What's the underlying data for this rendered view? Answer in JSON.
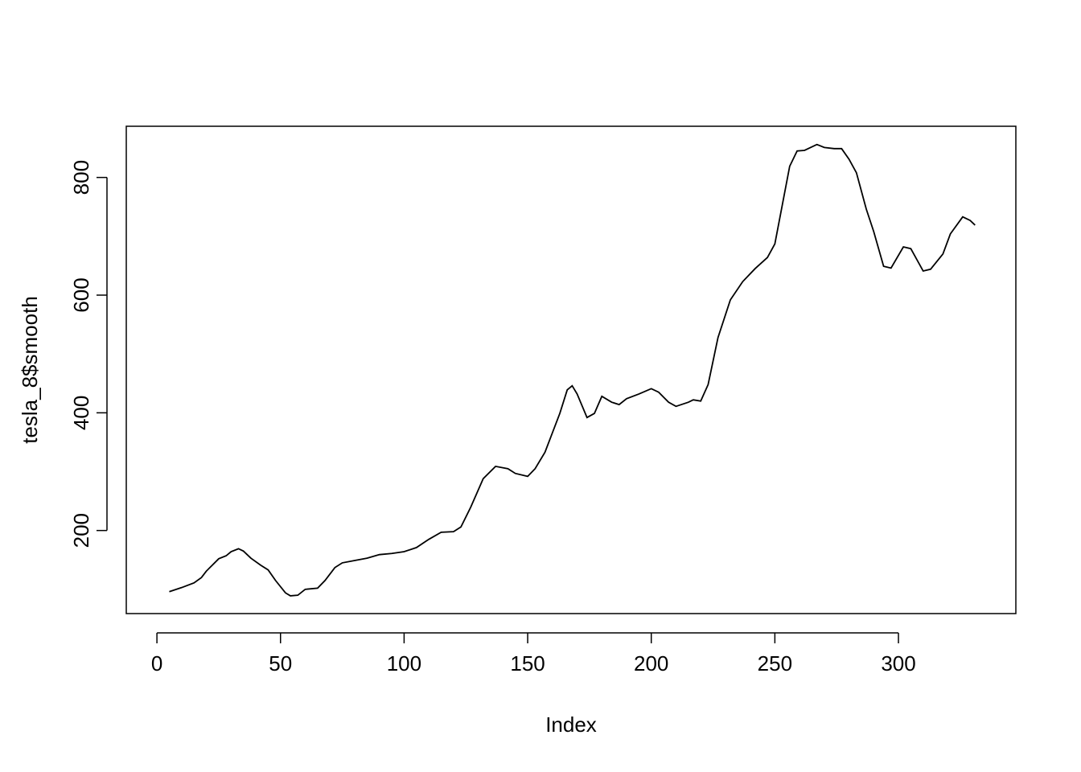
{
  "chart_data": {
    "type": "line",
    "x_label": "Index",
    "y_label": "tesla_8$smooth",
    "x": [
      5,
      10,
      15,
      18,
      20,
      25,
      28,
      30,
      33,
      35,
      38,
      42,
      45,
      48,
      52,
      54,
      57,
      60,
      65,
      68,
      72,
      75,
      80,
      85,
      90,
      95,
      100,
      105,
      110,
      115,
      120,
      123,
      127,
      132,
      137,
      142,
      145,
      150,
      153,
      157,
      160,
      163,
      166,
      168,
      170,
      174,
      177,
      180,
      184,
      187,
      190,
      195,
      200,
      203,
      207,
      210,
      215,
      217,
      220,
      223,
      227,
      232,
      237,
      242,
      247,
      250,
      253,
      256,
      259,
      262,
      267,
      270,
      274,
      277,
      280,
      283,
      287,
      290,
      294,
      297,
      302,
      305,
      310,
      313,
      318,
      321,
      326,
      329,
      331
    ],
    "series": [
      {
        "name": "tesla_8$smooth",
        "color": "#000000",
        "values": [
          96,
          103,
          111,
          120,
          131,
          152,
          157,
          164,
          169,
          165,
          153,
          141,
          133,
          115,
          94,
          89,
          90,
          100,
          102,
          115,
          137,
          145,
          149,
          153,
          159,
          161,
          164,
          171,
          185,
          197,
          198,
          206,
          240,
          288,
          309,
          305,
          297,
          292,
          305,
          333,
          366,
          399,
          439,
          446,
          432,
          392,
          399,
          428,
          418,
          414,
          424,
          432,
          441,
          435,
          418,
          411,
          418,
          422,
          420,
          448,
          528,
          592,
          623,
          645,
          664,
          687,
          753,
          819,
          845,
          846,
          856,
          851,
          849,
          849,
          831,
          808,
          746,
          708,
          649,
          646,
          682,
          679,
          641,
          644,
          670,
          704,
          733,
          727,
          719
        ]
      }
    ],
    "xlim": [
      -12.4,
      347.5
    ],
    "ylim": [
      58.8,
      887
    ],
    "xticks": [
      0,
      50,
      100,
      150,
      200,
      250,
      300
    ],
    "yticks": [
      200,
      400,
      600,
      800
    ],
    "grid": false
  }
}
